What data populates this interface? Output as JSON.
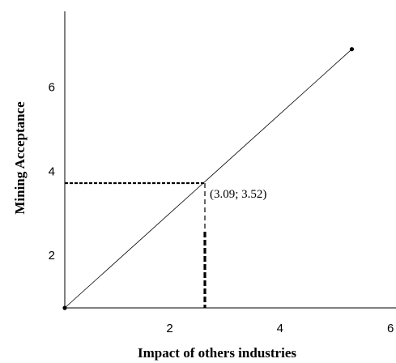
{
  "chart_data": {
    "type": "line",
    "title": "",
    "xlabel": "Impact of others industries",
    "ylabel": "Mining Acceptance",
    "xlim": [
      0.1,
      6.1
    ],
    "ylim": [
      0.75,
      7.8
    ],
    "xticks": [
      2,
      4,
      6
    ],
    "yticks": [
      2,
      4,
      6
    ],
    "series": [
      {
        "x": [
          0.1,
          5.3
        ],
        "y": [
          0.75,
          6.9
        ]
      }
    ],
    "endpoints": [
      {
        "x": 0.1,
        "y": 0.75
      },
      {
        "x": 5.3,
        "y": 6.9
      }
    ],
    "highlight": {
      "x": 3.09,
      "y": 3.52,
      "label": "(3.09; 3.52)"
    },
    "grid": false,
    "colors": {
      "line": "#000000",
      "axis": "#000000",
      "marker": "#000000"
    }
  }
}
